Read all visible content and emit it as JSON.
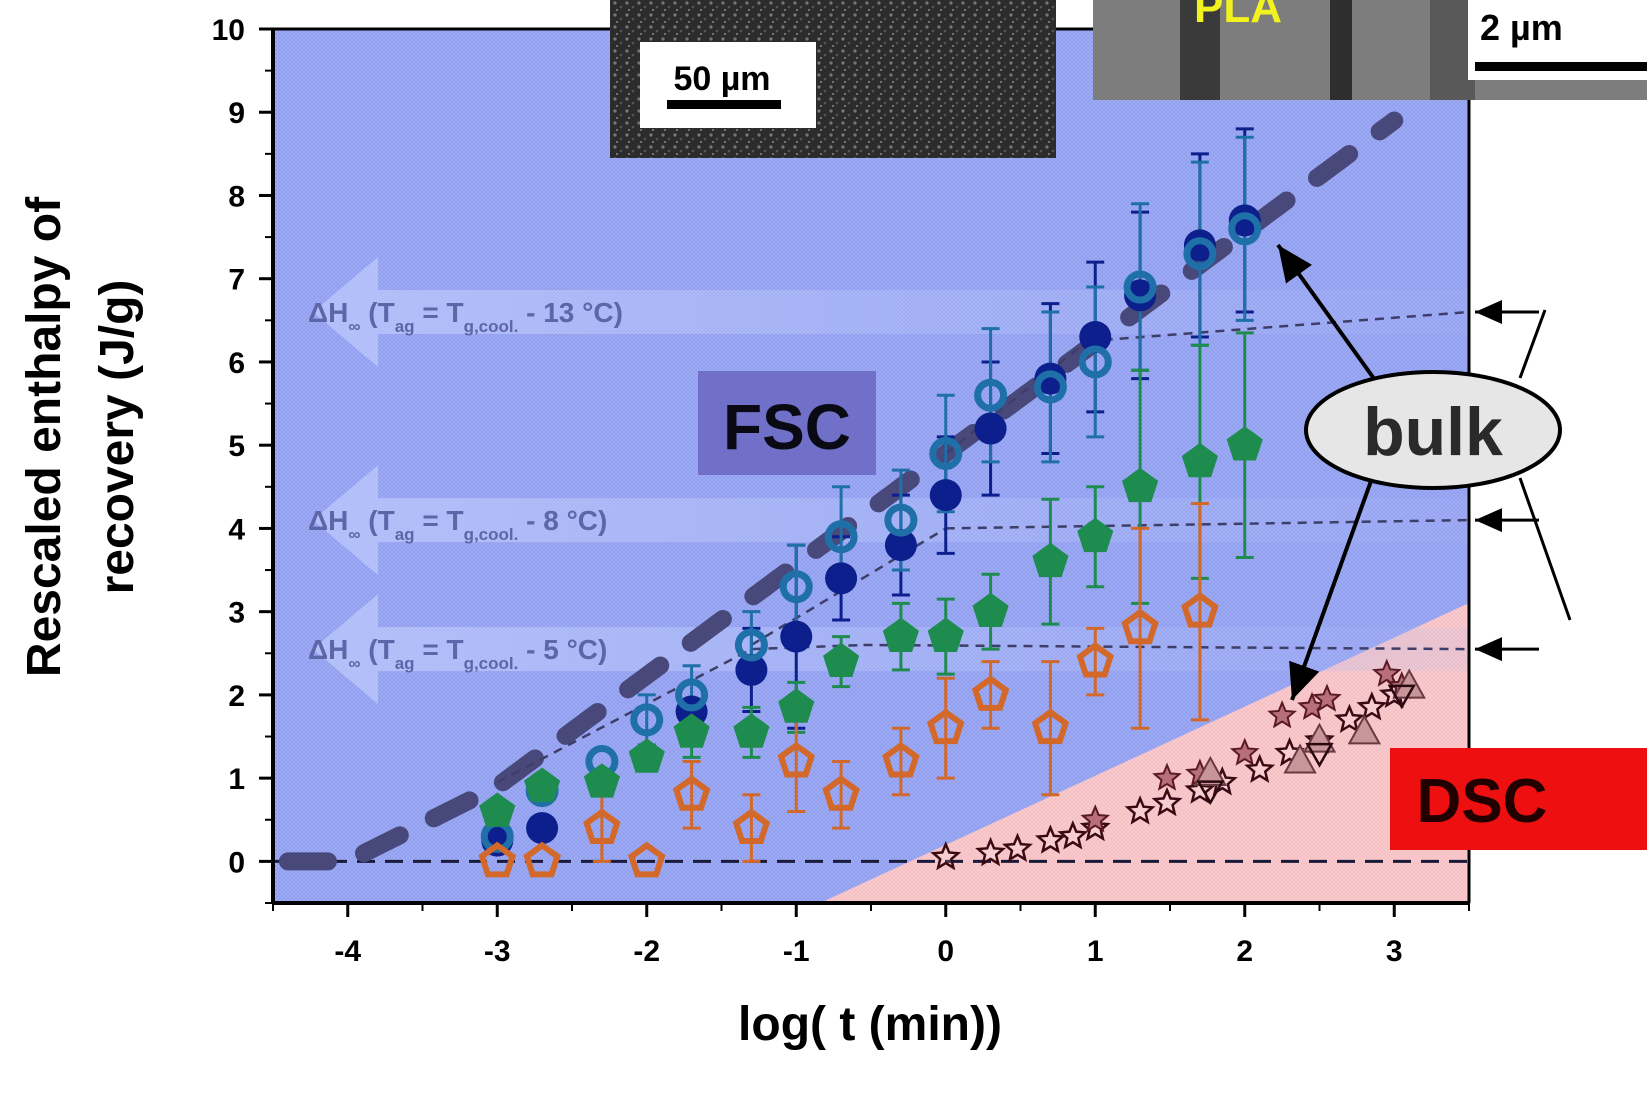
{
  "chart_data": {
    "type": "scatter",
    "xlabel": "log( t (min))",
    "ylabel_line1": "Rescaled enthalpy of",
    "ylabel_line2": "recovery (J/g)",
    "xlim": [
      -4.5,
      3.5
    ],
    "ylim": [
      -0.5,
      10
    ],
    "xticks": [
      -4,
      -3,
      -2,
      -1,
      0,
      1,
      2,
      3
    ],
    "yticks": [
      0,
      1,
      2,
      3,
      4,
      5,
      6,
      7,
      8,
      9,
      10
    ],
    "region_labels": {
      "fsc": "FSC",
      "dsc": "DSC",
      "bulk": "bulk"
    },
    "inset_labels": {
      "left_scale": "50 µm",
      "right_material": "PLA",
      "right_scale": "2 µm"
    },
    "plateaus": [
      {
        "prefix": "ΔH",
        "sub_inf": "∞",
        "open": " (T",
        "sub_ag": "ag",
        "mid": " = T",
        "sub_g": "g,cool.",
        "tail": " - 13 °C)",
        "y": 6.6
      },
      {
        "prefix": "ΔH",
        "sub_inf": "∞",
        "open": " (T",
        "sub_ag": "ag",
        "mid": " = T",
        "sub_g": "g,cool.",
        "tail": " - 8 °C)",
        "y": 4.1
      },
      {
        "prefix": "ΔH",
        "sub_inf": "∞",
        "open": " (T",
        "sub_ag": "ag",
        "mid": " = T",
        "sub_g": "g,cool.",
        "tail": " - 5 °C)",
        "y": 2.55
      }
    ],
    "fit_thick": [
      [
        -4.4,
        0
      ],
      [
        -4.0,
        0
      ],
      [
        -3.0,
        0.9
      ],
      [
        0.0,
        4.9
      ],
      [
        3.0,
        8.9
      ]
    ],
    "series": [
      {
        "marker": "filled-circle",
        "color": "#0c1f8c",
        "points": [
          [
            -3.0,
            0.25,
            0.0
          ],
          [
            -2.7,
            0.4,
            0.0
          ],
          [
            -1.7,
            1.8,
            0.0
          ],
          [
            -1.3,
            2.3,
            0.5
          ],
          [
            -1.0,
            2.7,
            1.1
          ],
          [
            -0.7,
            3.4,
            0.5
          ],
          [
            -0.3,
            3.8,
            0.6
          ],
          [
            0.0,
            4.4,
            0.7
          ],
          [
            0.3,
            5.2,
            0.8
          ],
          [
            0.7,
            5.8,
            0.9
          ],
          [
            1.0,
            6.3,
            0.9
          ],
          [
            1.3,
            6.8,
            1.0
          ],
          [
            1.7,
            7.4,
            1.1
          ],
          [
            2.0,
            7.7,
            1.1
          ]
        ]
      },
      {
        "marker": "open-circle",
        "color": "#1f6fa8",
        "points": [
          [
            -3.0,
            0.3,
            0.0
          ],
          [
            -2.7,
            0.85,
            0.0
          ],
          [
            -2.3,
            1.2,
            0.0
          ],
          [
            -2.0,
            1.7,
            0.3
          ],
          [
            -1.7,
            2.0,
            0.35
          ],
          [
            -1.3,
            2.6,
            0.4
          ],
          [
            -1.0,
            3.3,
            0.5
          ],
          [
            -0.7,
            3.9,
            0.6
          ],
          [
            -0.3,
            4.1,
            0.6
          ],
          [
            0.0,
            4.9,
            0.7
          ],
          [
            0.3,
            5.6,
            0.8
          ],
          [
            0.7,
            5.7,
            0.9
          ],
          [
            1.0,
            6.0,
            0.9
          ],
          [
            1.3,
            6.9,
            1.0
          ],
          [
            1.7,
            7.3,
            1.1
          ],
          [
            2.0,
            7.6,
            1.1
          ]
        ]
      },
      {
        "marker": "filled-pentagon",
        "color": "#1e8c4e",
        "points": [
          [
            -3.0,
            0.6,
            0.0
          ],
          [
            -2.7,
            0.9,
            0.0
          ],
          [
            -2.3,
            0.95,
            0.0
          ],
          [
            -2.0,
            1.25,
            0.0
          ],
          [
            -1.7,
            1.55,
            0.3
          ],
          [
            -1.3,
            1.55,
            0.3
          ],
          [
            -1.0,
            1.85,
            0.3
          ],
          [
            -0.7,
            2.4,
            0.3
          ],
          [
            -0.3,
            2.7,
            0.4
          ],
          [
            0.0,
            2.7,
            0.45
          ],
          [
            0.3,
            3.0,
            0.45
          ],
          [
            0.7,
            3.6,
            0.75
          ],
          [
            1.0,
            3.9,
            0.6
          ],
          [
            1.3,
            4.5,
            1.4
          ],
          [
            1.7,
            4.8,
            1.4
          ],
          [
            2.0,
            5.0,
            1.35
          ]
        ]
      },
      {
        "marker": "open-pentagon",
        "color": "#d2692a",
        "points": [
          [
            -3.0,
            0.0,
            0.0
          ],
          [
            -2.7,
            0.0,
            0.0
          ],
          [
            -2.3,
            0.4,
            0.4
          ],
          [
            -2.0,
            0.0,
            0.0
          ],
          [
            -1.7,
            0.8,
            0.4
          ],
          [
            -1.3,
            0.4,
            0.4
          ],
          [
            -1.0,
            1.2,
            0.6
          ],
          [
            -0.7,
            0.8,
            0.4
          ],
          [
            -0.3,
            1.2,
            0.4
          ],
          [
            0.0,
            1.6,
            0.6
          ],
          [
            0.3,
            2.0,
            0.4
          ],
          [
            0.7,
            1.6,
            0.8
          ],
          [
            1.0,
            2.4,
            0.4
          ],
          [
            1.3,
            2.8,
            1.2
          ],
          [
            1.7,
            3.0,
            1.3
          ]
        ]
      },
      {
        "marker": "open-star",
        "color": "#3a0a14",
        "points": [
          [
            0.0,
            0.05
          ],
          [
            0.3,
            0.1
          ],
          [
            0.48,
            0.15
          ],
          [
            0.7,
            0.25
          ],
          [
            0.85,
            0.3
          ],
          [
            1.0,
            0.4
          ],
          [
            1.3,
            0.6
          ],
          [
            1.48,
            0.7
          ],
          [
            1.7,
            0.85
          ],
          [
            1.85,
            0.95
          ],
          [
            2.1,
            1.1
          ],
          [
            2.3,
            1.3
          ],
          [
            2.5,
            1.45
          ],
          [
            2.7,
            1.7
          ],
          [
            2.85,
            1.85
          ],
          [
            3.0,
            2.0
          ]
        ]
      },
      {
        "marker": "filled-star",
        "color": "#b7707a",
        "points": [
          [
            1.0,
            0.5
          ],
          [
            1.48,
            1.0
          ],
          [
            1.7,
            1.05
          ],
          [
            2.0,
            1.3
          ],
          [
            2.25,
            1.75
          ],
          [
            2.45,
            1.85
          ],
          [
            2.55,
            1.95
          ],
          [
            2.95,
            2.25
          ],
          [
            3.05,
            2.1
          ]
        ]
      },
      {
        "marker": "filled-triangle",
        "color": "#c8969a",
        "points": [
          [
            1.77,
            1.05
          ],
          [
            2.37,
            1.2
          ],
          [
            2.5,
            1.45
          ],
          [
            2.8,
            1.55
          ],
          [
            3.1,
            2.1
          ]
        ]
      },
      {
        "marker": "open-invtriangle",
        "color": "#2a0a10",
        "points": [
          [
            1.77,
            0.85
          ],
          [
            2.5,
            1.3
          ],
          [
            3.05,
            2.0
          ]
        ]
      }
    ]
  }
}
